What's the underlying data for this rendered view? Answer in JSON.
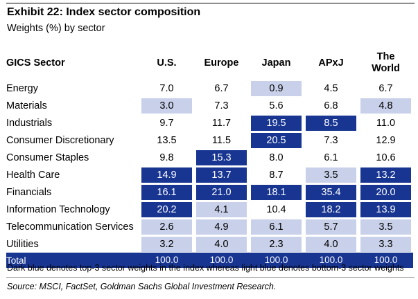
{
  "title": "Exhibit 22: Index sector composition",
  "subtitle": "Weights (%) by sector",
  "table": {
    "sector_header": "GICS Sector",
    "col1": "U.S.",
    "col2": "Europe",
    "col3": "Japan",
    "col4": "APxJ",
    "col5_line1": "The",
    "col5_line2": "World",
    "rows": [
      {
        "sector": "Energy",
        "v": [
          "7.0",
          "6.7",
          "0.9",
          "4.5",
          "6.7"
        ]
      },
      {
        "sector": "Materials",
        "v": [
          "3.0",
          "7.3",
          "5.6",
          "6.8",
          "4.8"
        ]
      },
      {
        "sector": "Industrials",
        "v": [
          "9.7",
          "11.7",
          "19.5",
          "8.5",
          "11.0"
        ]
      },
      {
        "sector": "Consumer Discretionary",
        "v": [
          "13.5",
          "11.5",
          "20.5",
          "7.3",
          "12.9"
        ]
      },
      {
        "sector": "Consumer Staples",
        "v": [
          "9.8",
          "15.3",
          "8.0",
          "6.1",
          "10.6"
        ]
      },
      {
        "sector": "Health Care",
        "v": [
          "14.9",
          "13.7",
          "8.7",
          "3.5",
          "13.2"
        ]
      },
      {
        "sector": "Financials",
        "v": [
          "16.1",
          "21.0",
          "18.1",
          "35.4",
          "20.0"
        ]
      },
      {
        "sector": "Information Technology",
        "v": [
          "20.2",
          "4.1",
          "10.4",
          "18.2",
          "13.9"
        ]
      },
      {
        "sector": "Telecommunication Services",
        "v": [
          "2.6",
          "4.9",
          "6.1",
          "5.7",
          "3.5"
        ]
      },
      {
        "sector": "Utilities",
        "v": [
          "3.2",
          "4.0",
          "2.3",
          "4.0",
          "3.3"
        ]
      }
    ],
    "total": {
      "label": "Total",
      "v": [
        "100.0",
        "100.0",
        "100.0",
        "100.0",
        "100.0"
      ]
    }
  },
  "note": "Dark blue denotes top-3 sector weights in the index whereas light blue denotes bottom-3 sector weights",
  "source": "Source: MSCI, FactSet, Goldman Sachs Global Investment Research.",
  "colors": {
    "dark_blue": "#173591",
    "light_blue": "#c9d1ea"
  }
}
